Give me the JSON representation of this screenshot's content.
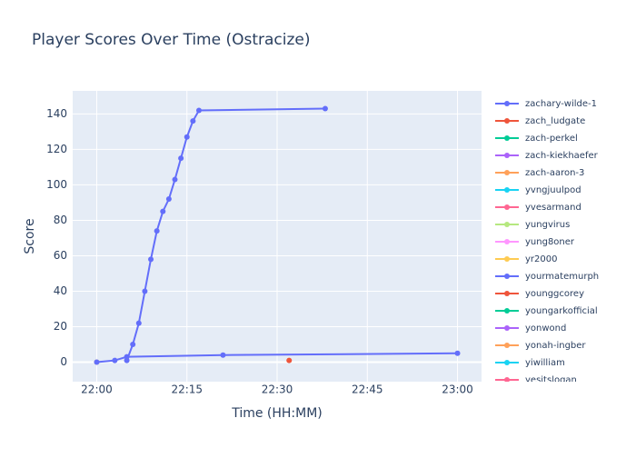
{
  "chart_data": {
    "type": "line",
    "title": "Player Scores Over Time (Ostracize)",
    "x_label": "Time (HH:MM)",
    "y_label": "Score",
    "xlim": [
      "21:56",
      "23:04"
    ],
    "xticks": [
      "22:00",
      "22:15",
      "22:30",
      "22:45",
      "23:00"
    ],
    "ylim": [
      -11,
      153
    ],
    "yticks": [
      0,
      20,
      40,
      60,
      80,
      100,
      120,
      140
    ],
    "grid": true,
    "series": [
      {
        "name": "zachary-wilde-1",
        "color": "#636efa",
        "x": [
          "22:05",
          "22:06",
          "22:07",
          "22:08",
          "22:09",
          "22:10",
          "22:11",
          "22:12",
          "22:13",
          "22:14",
          "22:15",
          "22:16",
          "22:17",
          "22:38"
        ],
        "values": [
          1,
          10,
          22,
          40,
          58,
          74,
          85,
          92,
          103,
          115,
          127,
          136,
          142,
          143
        ]
      },
      {
        "name": "zach_ludgate",
        "color": "#EF553B",
        "x": [
          "22:32"
        ],
        "values": [
          1
        ]
      },
      {
        "name": "zach-perkel",
        "color": "#00cc96",
        "x": [],
        "values": []
      },
      {
        "name": "zach-kiekhaefer",
        "color": "#ab63fa",
        "x": [],
        "values": []
      },
      {
        "name": "zach-aaron-3",
        "color": "#FFA15A",
        "x": [],
        "values": []
      },
      {
        "name": "yvngjuulpod",
        "color": "#19d3f3",
        "x": [],
        "values": []
      },
      {
        "name": "yvesarmand",
        "color": "#FF6692",
        "x": [],
        "values": []
      },
      {
        "name": "yungvirus",
        "color": "#B6E880",
        "x": [],
        "values": []
      },
      {
        "name": "yung8oner",
        "color": "#FF97FF",
        "x": [],
        "values": []
      },
      {
        "name": "yr2000",
        "color": "#FECB52",
        "x": [
          "22:00"
        ],
        "values": [
          0
        ]
      },
      {
        "name": "yourmatemurph",
        "color": "#636efa",
        "x": [
          "22:00",
          "22:03",
          "22:05",
          "22:21",
          "23:00"
        ],
        "values": [
          0,
          1,
          3,
          4,
          5
        ]
      },
      {
        "name": "younggcorey",
        "color": "#EF553B",
        "x": [],
        "values": []
      },
      {
        "name": "youngarkofficial",
        "color": "#00cc96",
        "x": [],
        "values": []
      },
      {
        "name": "yonwond",
        "color": "#ab63fa",
        "x": [],
        "values": []
      },
      {
        "name": "yonah-ingber",
        "color": "#FFA15A",
        "x": [],
        "values": []
      },
      {
        "name": "yiwilliam",
        "color": "#19d3f3",
        "x": [],
        "values": []
      },
      {
        "name": "yesitslogan",
        "color": "#FF6692",
        "x": [],
        "values": []
      }
    ]
  }
}
